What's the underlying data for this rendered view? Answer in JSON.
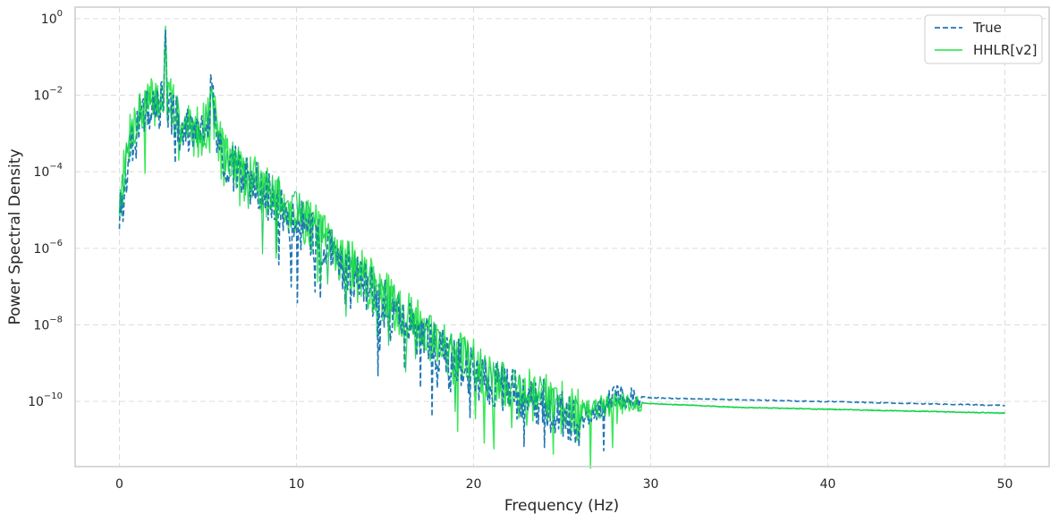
{
  "chart_data": {
    "type": "line",
    "xlabel": "Frequency (Hz)",
    "ylabel": "Power Spectral Density",
    "xlim": [
      -2.5,
      52.5
    ],
    "ylim_log10": [
      -11.7,
      0.3
    ],
    "y_scale": "log",
    "grid": true,
    "legend_position": "top-right",
    "x_ticks": [
      0,
      10,
      20,
      30,
      40,
      50
    ],
    "y_ticks_exponent": [
      0,
      -2,
      -4,
      -6,
      -8,
      -10
    ],
    "y_tick_base": "10",
    "colors": {
      "true": "#1f77b4",
      "hhlr": "#3ce85a",
      "hhlr_dark": "#08c94a",
      "grid": "#dddddd",
      "frame": "#cccccc"
    },
    "series": [
      {
        "name": "True",
        "style": "dashed",
        "x": [
          0,
          0.3,
          0.6,
          1.0,
          1.5,
          2.0,
          2.5,
          2.6,
          2.7,
          3.0,
          3.5,
          4.0,
          4.5,
          5.0,
          5.2,
          5.5,
          6.0,
          7.0,
          8.0,
          9.0,
          10.0,
          12.0,
          14.0,
          16.0,
          18.0,
          20.0,
          22.0,
          24.0,
          26.0,
          28.0,
          30.0,
          35.0,
          40.0,
          45.0,
          50.0
        ],
        "y_log10": [
          -5.0,
          -4.3,
          -3.3,
          -2.6,
          -2.3,
          -2.2,
          -2.0,
          -0.3,
          -2.0,
          -2.3,
          -2.7,
          -2.8,
          -2.9,
          -2.6,
          -1.6,
          -3.0,
          -3.6,
          -4.0,
          -4.3,
          -4.8,
          -5.1,
          -6.0,
          -6.9,
          -7.7,
          -8.5,
          -9.1,
          -9.6,
          -9.9,
          -10.5,
          -9.8,
          -9.9,
          -9.95,
          -10.0,
          -10.05,
          -10.1
        ]
      },
      {
        "name": "HHLR[v2]",
        "style": "solid",
        "x": [
          0,
          0.3,
          0.6,
          1.0,
          1.5,
          2.0,
          2.5,
          2.6,
          2.7,
          3.0,
          3.5,
          4.0,
          4.5,
          5.0,
          5.2,
          5.5,
          6.0,
          7.0,
          8.0,
          9.0,
          10.0,
          12.0,
          14.0,
          16.0,
          18.0,
          20.0,
          22.0,
          24.0,
          26.0,
          28.0,
          30.0,
          35.0,
          40.0,
          45.0,
          50.0
        ],
        "y_log10": [
          -4.6,
          -3.8,
          -2.8,
          -2.4,
          -2.1,
          -2.0,
          -1.8,
          -0.2,
          -1.9,
          -2.2,
          -2.6,
          -2.7,
          -2.8,
          -2.5,
          -1.8,
          -2.8,
          -3.4,
          -3.9,
          -4.2,
          -4.6,
          -4.9,
          -5.8,
          -6.7,
          -7.5,
          -8.3,
          -8.9,
          -9.5,
          -9.8,
          -10.2,
          -10.0,
          -10.05,
          -10.15,
          -10.2,
          -10.25,
          -10.3
        ]
      }
    ]
  }
}
